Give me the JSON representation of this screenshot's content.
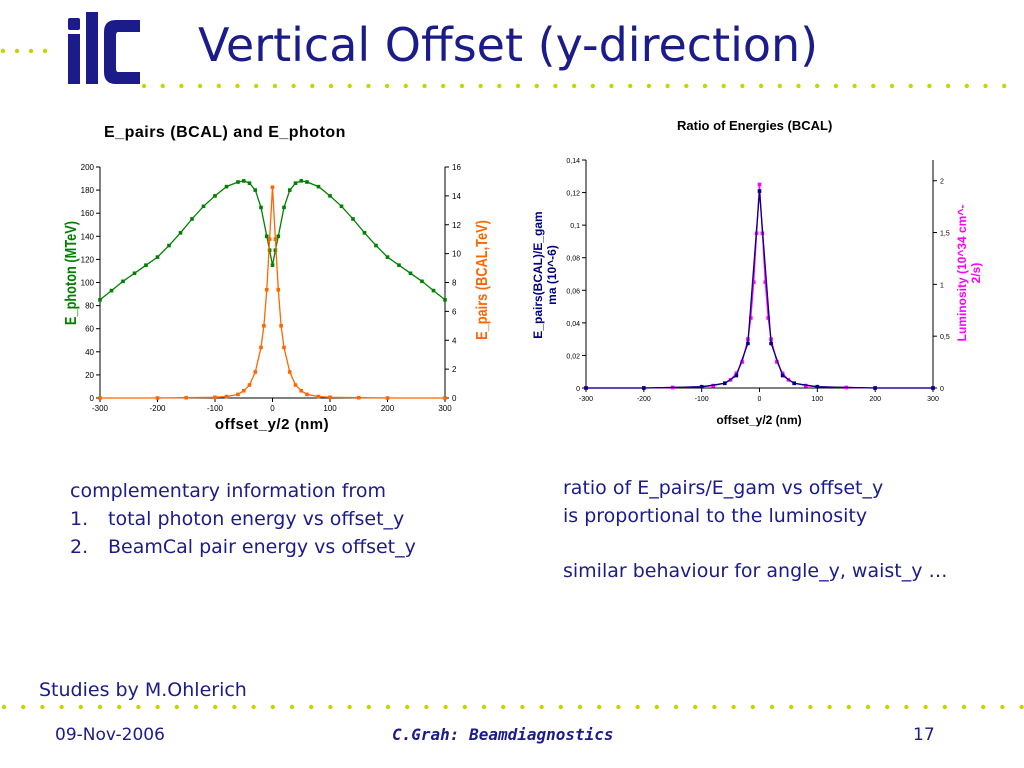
{
  "slide": {
    "title": "Vertical Offset (y-direction)",
    "logo_text": "ilc",
    "left_text": {
      "intro": "complementary information from",
      "items": [
        {
          "num": "1.",
          "text": "total photon energy vs offset_y"
        },
        {
          "num": "2.",
          "text": "BeamCal pair energy vs offset_y"
        }
      ]
    },
    "right_text": {
      "line1": "ratio of E_pairs/E_gam vs offset_y",
      "line2": "is proportional to the luminosity",
      "line3": "similar behaviour for angle_y, waist_y …"
    },
    "credit": "Studies by M.Ohlerich",
    "footer": {
      "date": "09-Nov-2006",
      "center": "C.Grah: Beamdiagnostics",
      "page": "17"
    },
    "colors": {
      "text": "#1b1b8a",
      "dots": "#c8d400",
      "photon": "#008000",
      "pairs": "#ff6600",
      "ratio": "#ff00ff",
      "lumi": "#000080"
    }
  },
  "chart_data": [
    {
      "type": "line",
      "title": "E_pairs (BCAL) and E_photon",
      "xlabel": "offset_y/2 (nm)",
      "ylabel": "E_photon (MTeV)",
      "y2label": "E_pairs (BCAL,TeV)",
      "xlim": [
        -300,
        300
      ],
      "ylim": [
        0,
        200
      ],
      "y2lim": [
        0,
        16
      ],
      "xticks": [
        "-300",
        "-200",
        "-100",
        "0",
        "100",
        "200",
        "300"
      ],
      "yticks": [
        "0",
        "20",
        "40",
        "60",
        "80",
        "100",
        "120",
        "140",
        "160",
        "180",
        "200"
      ],
      "y2ticks": [
        "0",
        "2",
        "4",
        "6",
        "8",
        "10",
        "12",
        "14",
        "16"
      ],
      "grid": false,
      "series": [
        {
          "axis": "left",
          "color": "#008000",
          "x": [
            -300,
            -280,
            -260,
            -240,
            -220,
            -200,
            -180,
            -160,
            -140,
            -120,
            -100,
            -80,
            -60,
            -50,
            -40,
            -30,
            -20,
            -10,
            -5,
            0,
            5,
            10,
            20,
            30,
            40,
            50,
            60,
            80,
            100,
            120,
            140,
            160,
            180,
            200,
            220,
            240,
            260,
            280,
            300
          ],
          "y": [
            85,
            93,
            101,
            108,
            115,
            122,
            132,
            143,
            155,
            166,
            175,
            183,
            187,
            188,
            186,
            180,
            165,
            140,
            128,
            115,
            128,
            140,
            165,
            180,
            186,
            188,
            187,
            183,
            175,
            166,
            155,
            143,
            132,
            122,
            115,
            108,
            101,
            93,
            85
          ]
        },
        {
          "axis": "right",
          "color": "#ff6600",
          "x": [
            -300,
            -200,
            -150,
            -100,
            -80,
            -60,
            -50,
            -40,
            -30,
            -20,
            -15,
            -10,
            -5,
            0,
            5,
            10,
            15,
            20,
            30,
            40,
            50,
            60,
            80,
            100,
            150,
            200,
            300
          ],
          "y": [
            0,
            0,
            0.02,
            0.05,
            0.1,
            0.25,
            0.5,
            0.9,
            1.8,
            3.5,
            5,
            7.5,
            11,
            14.6,
            11,
            7.5,
            5,
            3.5,
            1.8,
            0.9,
            0.5,
            0.25,
            0.1,
            0.05,
            0.02,
            0,
            0
          ]
        }
      ]
    },
    {
      "type": "line",
      "title": "Ratio of Energies (BCAL)",
      "xlabel": "offset_y/2 (nm)",
      "ylabel": "E_pairs(BCAL)/E_gamma (10^-6)",
      "y2label": "Luminosity (10^34 cm^-2/s)",
      "xlim": [
        -300,
        300
      ],
      "ylim": [
        0,
        0.14
      ],
      "y2lim": [
        0,
        2.2
      ],
      "xticks": [
        "-300",
        "-200",
        "-100",
        "0",
        "100",
        "200",
        "300"
      ],
      "yticks": [
        "0",
        "0,02",
        "0,04",
        "0,06",
        "0,08",
        "0,1",
        "0,12",
        "0,14"
      ],
      "y2ticks": [
        "0",
        "0,5",
        "1",
        "1,5",
        "2"
      ],
      "grid": false,
      "series": [
        {
          "axis": "left",
          "color": "#ff00ff",
          "x": [
            -300,
            -200,
            -150,
            -100,
            -80,
            -60,
            -50,
            -40,
            -30,
            -20,
            -15,
            -10,
            -5,
            0,
            5,
            10,
            15,
            20,
            30,
            40,
            50,
            60,
            80,
            100,
            150,
            200,
            300
          ],
          "y": [
            0,
            0,
            0.0003,
            0.0008,
            0.0015,
            0.003,
            0.005,
            0.009,
            0.016,
            0.03,
            0.043,
            0.065,
            0.095,
            0.125,
            0.095,
            0.065,
            0.043,
            0.03,
            0.016,
            0.009,
            0.005,
            0.003,
            0.0015,
            0.0008,
            0.0003,
            0,
            0
          ]
        },
        {
          "axis": "right",
          "color": "#000080",
          "x": [
            -300,
            -200,
            -100,
            -60,
            -40,
            -20,
            0,
            20,
            40,
            60,
            100,
            200,
            300
          ],
          "y": [
            0,
            0,
            0.012,
            0.045,
            0.12,
            0.43,
            1.9,
            0.43,
            0.12,
            0.045,
            0.012,
            0,
            0
          ]
        }
      ]
    }
  ]
}
